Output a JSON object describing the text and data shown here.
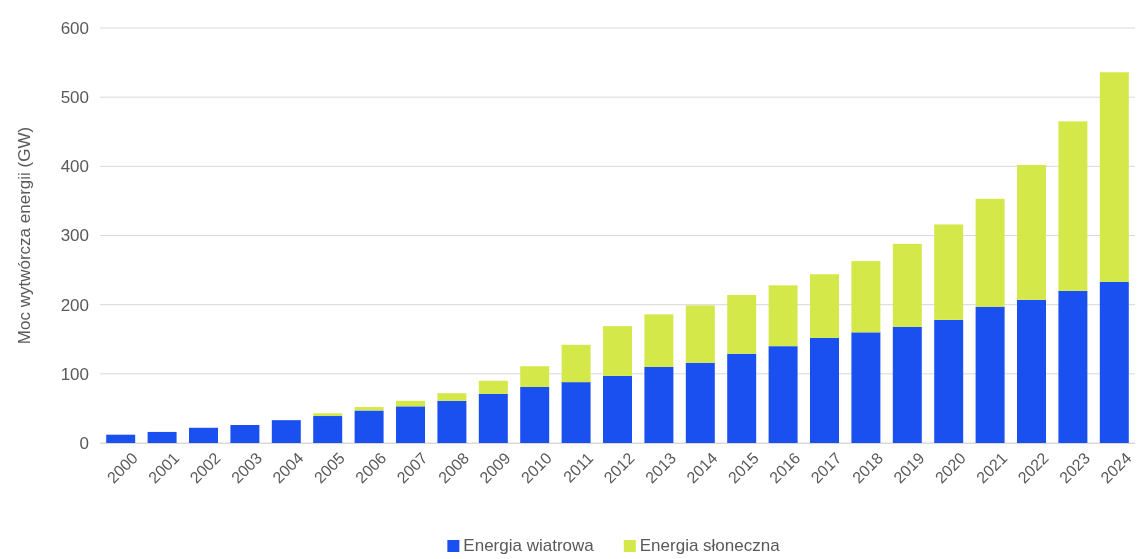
{
  "chart_data": {
    "type": "bar",
    "stacked": true,
    "ylabel": "Moc wytwórcza energii (GW)",
    "categories": [
      "2000",
      "2001",
      "2002",
      "2003",
      "2004",
      "2005",
      "2006",
      "2007",
      "2008",
      "2009",
      "2010",
      "2011",
      "2012",
      "2013",
      "2014",
      "2015",
      "2016",
      "2017",
      "2018",
      "2019",
      "2020",
      "2021",
      "2022",
      "2023",
      "2024"
    ],
    "series": [
      {
        "name": "Energia wiatrowa",
        "color": "#1a4ff0",
        "values": [
          12,
          16,
          22,
          26,
          33,
          39,
          47,
          53,
          61,
          71,
          81,
          88,
          97,
          110,
          116,
          129,
          140,
          152,
          160,
          168,
          178,
          197,
          207,
          220,
          233
        ]
      },
      {
        "name": "Energia słoneczna",
        "color": "#d4e84a",
        "values": [
          0,
          0,
          0,
          0,
          0,
          4,
          5,
          8,
          11,
          19,
          30,
          54,
          72,
          76,
          83,
          85,
          88,
          92,
          103,
          120,
          138,
          156,
          195,
          245,
          303
        ]
      }
    ],
    "ylim": [
      0,
      600
    ],
    "yticks": [
      0,
      100,
      200,
      300,
      400,
      500,
      600
    ],
    "grid": "y",
    "legend": "bottom"
  }
}
